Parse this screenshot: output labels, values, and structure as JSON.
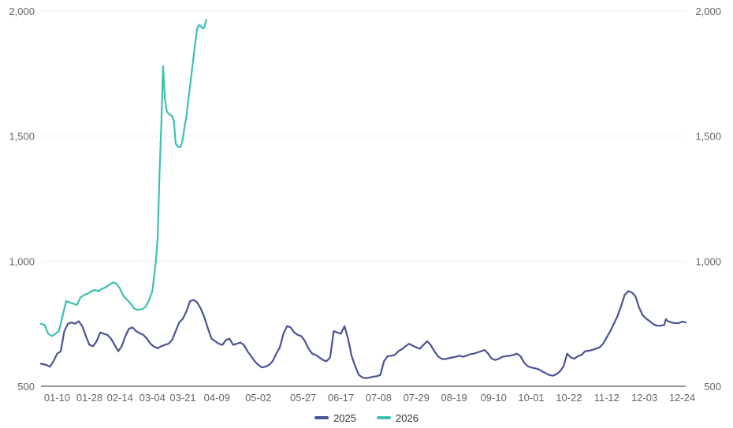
{
  "chart_data": {
    "type": "line",
    "title": "",
    "xlabel": "",
    "ylabel": "",
    "ylim": [
      500,
      2000
    ],
    "y_ticks": [
      500,
      1000,
      1500,
      2000
    ],
    "y_tick_labels": [
      "500",
      "1,000",
      "1,500",
      "2,000"
    ],
    "dual_y_axis": true,
    "grid": "horizontal",
    "legend_position": "bottom-center",
    "x_tick_labels": [
      "01-10",
      "01-28",
      "02-14",
      "03-04",
      "03-21",
      "04-09",
      "05-02",
      "05-27",
      "06-17",
      "07-08",
      "07-29",
      "08-19",
      "09-10",
      "10-01",
      "10-22",
      "11-12",
      "12-03",
      "12-24"
    ],
    "x_tick_days": [
      10,
      28,
      45,
      63,
      80,
      99,
      122,
      147,
      168,
      189,
      210,
      231,
      253,
      274,
      295,
      316,
      337,
      358
    ],
    "series": [
      {
        "name": "2025",
        "color": "#4a5394",
        "points": [
          [
            1,
            590
          ],
          [
            4,
            585
          ],
          [
            6,
            578
          ],
          [
            8,
            600
          ],
          [
            10,
            630
          ],
          [
            12,
            640
          ],
          [
            14,
            720
          ],
          [
            16,
            750
          ],
          [
            18,
            755
          ],
          [
            20,
            750
          ],
          [
            22,
            760
          ],
          [
            24,
            740
          ],
          [
            26,
            700
          ],
          [
            28,
            665
          ],
          [
            30,
            660
          ],
          [
            32,
            680
          ],
          [
            34,
            715
          ],
          [
            36,
            710
          ],
          [
            38,
            705
          ],
          [
            40,
            690
          ],
          [
            42,
            665
          ],
          [
            44,
            640
          ],
          [
            46,
            660
          ],
          [
            48,
            700
          ],
          [
            50,
            730
          ],
          [
            52,
            735
          ],
          [
            54,
            720
          ],
          [
            56,
            712
          ],
          [
            58,
            705
          ],
          [
            60,
            690
          ],
          [
            62,
            670
          ],
          [
            64,
            658
          ],
          [
            66,
            652
          ],
          [
            68,
            660
          ],
          [
            70,
            665
          ],
          [
            72,
            670
          ],
          [
            74,
            685
          ],
          [
            76,
            720
          ],
          [
            78,
            755
          ],
          [
            80,
            770
          ],
          [
            82,
            800
          ],
          [
            84,
            840
          ],
          [
            86,
            845
          ],
          [
            88,
            835
          ],
          [
            90,
            810
          ],
          [
            92,
            775
          ],
          [
            94,
            730
          ],
          [
            96,
            690
          ],
          [
            98,
            680
          ],
          [
            100,
            670
          ],
          [
            102,
            665
          ],
          [
            104,
            685
          ],
          [
            106,
            690
          ],
          [
            108,
            665
          ],
          [
            110,
            670
          ],
          [
            112,
            675
          ],
          [
            114,
            665
          ],
          [
            116,
            640
          ],
          [
            118,
            620
          ],
          [
            120,
            600
          ],
          [
            122,
            585
          ],
          [
            124,
            575
          ],
          [
            126,
            578
          ],
          [
            128,
            585
          ],
          [
            130,
            600
          ],
          [
            132,
            630
          ],
          [
            134,
            655
          ],
          [
            136,
            710
          ],
          [
            138,
            740
          ],
          [
            140,
            735
          ],
          [
            142,
            715
          ],
          [
            144,
            705
          ],
          [
            146,
            700
          ],
          [
            148,
            680
          ],
          [
            150,
            650
          ],
          [
            152,
            630
          ],
          [
            154,
            625
          ],
          [
            156,
            615
          ],
          [
            158,
            605
          ],
          [
            160,
            600
          ],
          [
            162,
            615
          ],
          [
            164,
            720
          ],
          [
            166,
            715
          ],
          [
            168,
            710
          ],
          [
            170,
            740
          ],
          [
            172,
            690
          ],
          [
            174,
            620
          ],
          [
            176,
            580
          ],
          [
            178,
            545
          ],
          [
            180,
            535
          ],
          [
            182,
            532
          ],
          [
            184,
            535
          ],
          [
            186,
            538
          ],
          [
            188,
            540
          ],
          [
            190,
            545
          ],
          [
            192,
            600
          ],
          [
            194,
            620
          ],
          [
            196,
            622
          ],
          [
            198,
            625
          ],
          [
            200,
            640
          ],
          [
            202,
            648
          ],
          [
            204,
            660
          ],
          [
            206,
            670
          ],
          [
            208,
            662
          ],
          [
            210,
            655
          ],
          [
            212,
            650
          ],
          [
            214,
            665
          ],
          [
            216,
            680
          ],
          [
            218,
            665
          ],
          [
            220,
            640
          ],
          [
            222,
            620
          ],
          [
            224,
            610
          ],
          [
            226,
            608
          ],
          [
            228,
            612
          ],
          [
            230,
            615
          ],
          [
            232,
            618
          ],
          [
            234,
            622
          ],
          [
            236,
            618
          ],
          [
            238,
            622
          ],
          [
            240,
            628
          ],
          [
            242,
            630
          ],
          [
            244,
            635
          ],
          [
            246,
            640
          ],
          [
            248,
            645
          ],
          [
            250,
            630
          ],
          [
            252,
            610
          ],
          [
            254,
            605
          ],
          [
            256,
            610
          ],
          [
            258,
            618
          ],
          [
            260,
            620
          ],
          [
            262,
            622
          ],
          [
            264,
            625
          ],
          [
            266,
            630
          ],
          [
            268,
            620
          ],
          [
            270,
            595
          ],
          [
            272,
            580
          ],
          [
            274,
            575
          ],
          [
            276,
            572
          ],
          [
            278,
            568
          ],
          [
            280,
            560
          ],
          [
            282,
            552
          ],
          [
            284,
            545
          ],
          [
            286,
            542
          ],
          [
            288,
            548
          ],
          [
            290,
            560
          ],
          [
            292,
            580
          ],
          [
            294,
            630
          ],
          [
            296,
            615
          ],
          [
            298,
            610
          ],
          [
            300,
            620
          ],
          [
            302,
            625
          ],
          [
            304,
            640
          ],
          [
            306,
            642
          ],
          [
            308,
            645
          ],
          [
            310,
            650
          ],
          [
            312,
            655
          ],
          [
            314,
            670
          ],
          [
            316,
            695
          ],
          [
            318,
            720
          ],
          [
            320,
            750
          ],
          [
            322,
            780
          ],
          [
            324,
            820
          ],
          [
            326,
            865
          ],
          [
            328,
            880
          ],
          [
            330,
            875
          ],
          [
            332,
            860
          ],
          [
            334,
            815
          ],
          [
            336,
            785
          ],
          [
            338,
            770
          ],
          [
            340,
            760
          ],
          [
            342,
            748
          ],
          [
            344,
            742
          ],
          [
            346,
            742
          ],
          [
            348,
            745
          ],
          [
            349,
            768
          ],
          [
            350,
            760
          ],
          [
            352,
            755
          ],
          [
            354,
            752
          ],
          [
            356,
            752
          ],
          [
            358,
            758
          ],
          [
            360,
            755
          ]
        ]
      },
      {
        "name": "2026",
        "color": "#3ebfb2",
        "points": [
          [
            1,
            750
          ],
          [
            3,
            745
          ],
          [
            5,
            710
          ],
          [
            7,
            700
          ],
          [
            9,
            710
          ],
          [
            11,
            720
          ],
          [
            13,
            780
          ],
          [
            15,
            840
          ],
          [
            17,
            835
          ],
          [
            19,
            830
          ],
          [
            21,
            825
          ],
          [
            23,
            855
          ],
          [
            25,
            865
          ],
          [
            27,
            870
          ],
          [
            29,
            880
          ],
          [
            31,
            885
          ],
          [
            33,
            880
          ],
          [
            35,
            890
          ],
          [
            37,
            895
          ],
          [
            39,
            905
          ],
          [
            41,
            915
          ],
          [
            43,
            910
          ],
          [
            45,
            890
          ],
          [
            47,
            860
          ],
          [
            49,
            845
          ],
          [
            51,
            830
          ],
          [
            53,
            810
          ],
          [
            55,
            805
          ],
          [
            57,
            808
          ],
          [
            59,
            815
          ],
          [
            61,
            840
          ],
          [
            63,
            880
          ],
          [
            65,
            1000
          ],
          [
            66,
            1100
          ],
          [
            67,
            1350
          ],
          [
            68,
            1550
          ],
          [
            69,
            1780
          ],
          [
            70,
            1650
          ],
          [
            71,
            1600
          ],
          [
            72,
            1590
          ],
          [
            74,
            1580
          ],
          [
            75,
            1560
          ],
          [
            76,
            1470
          ],
          [
            77,
            1460
          ],
          [
            78,
            1455
          ],
          [
            79,
            1460
          ],
          [
            80,
            1490
          ],
          [
            81,
            1540
          ],
          [
            82,
            1580
          ],
          [
            83,
            1640
          ],
          [
            84,
            1700
          ],
          [
            85,
            1760
          ],
          [
            86,
            1820
          ],
          [
            87,
            1880
          ],
          [
            88,
            1930
          ],
          [
            89,
            1945
          ],
          [
            90,
            1940
          ],
          [
            91,
            1930
          ],
          [
            92,
            1935
          ],
          [
            93,
            1965
          ]
        ]
      }
    ]
  }
}
